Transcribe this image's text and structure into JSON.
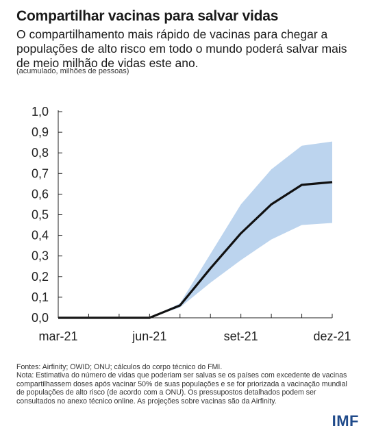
{
  "header": {
    "title": "Compartilhar vacinas para salvar vidas",
    "subtitle": "O compartilhamento mais rápido de vacinas para chegar a populações de alto risco em todo o mundo poderá salvar mais de meio milhão de vidas este ano.",
    "unit_note": "(acumulado, milhões de pessoas)"
  },
  "chart_data": {
    "type": "line",
    "x": [
      "mar-21",
      "abr-21",
      "mai-21",
      "jun-21",
      "jul-21",
      "ago-21",
      "set-21",
      "out-21",
      "nov-21",
      "dez-21"
    ],
    "series": [
      {
        "values": [
          0.0,
          0.0,
          0.0,
          0.0,
          0.06,
          0.24,
          0.41,
          0.55,
          0.645,
          0.658
        ]
      }
    ],
    "band": {
      "lower": [
        0.0,
        0.0,
        0.0,
        0.0,
        0.05,
        0.17,
        0.28,
        0.38,
        0.45,
        0.46
      ],
      "upper": [
        0.0,
        0.0,
        0.0,
        0.0,
        0.07,
        0.31,
        0.55,
        0.72,
        0.835,
        0.855
      ]
    },
    "tick_labels_x": [
      "mar-21",
      "jun-21",
      "set-21",
      "dez-21"
    ],
    "tick_labels_y": [
      "0,0",
      "0,1",
      "0,2",
      "0,3",
      "0,4",
      "0,5",
      "0,6",
      "0,7",
      "0,8",
      "0,9",
      "1,0"
    ],
    "ylim": [
      0,
      1.0
    ],
    "grid": false,
    "colors": {
      "line": "#111111",
      "band": "#bcd4ee"
    }
  },
  "footer": {
    "source": "Fontes: Airfinity; OWID; ONU; cálculos do corpo técnico do FMI.",
    "note": "Nota: Estimativa do número de vidas que poderiam ser salvas se os países com excedente de vacinas compartilhassem doses após vacinar 50% de suas populações e se for priorizada a vacinação mundial de populações de alto risco (de acordo com a ONU). Os pressupostos detalhados podem ser consultados no anexo técnico online. As projeções sobre vacinas são da Airfinity."
  },
  "logo": {
    "text": "IMF",
    "color": "#1f4a8a"
  }
}
